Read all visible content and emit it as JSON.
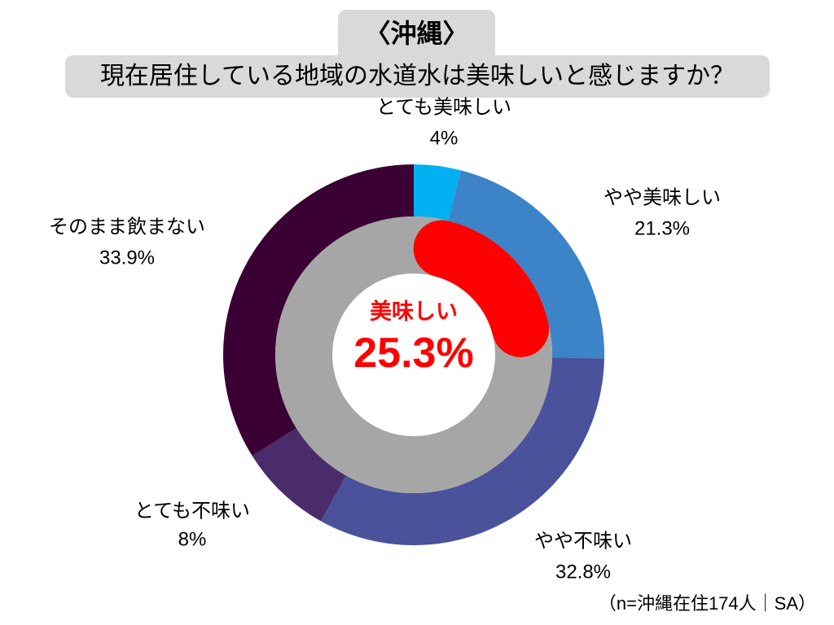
{
  "chart_data": {
    "type": "pie",
    "donut": true,
    "title": "〈沖縄〉",
    "subtitle": "現在居住している地域の水道水は美味しいと感じますか？",
    "categories": [
      "とても美味しい",
      "やや美味しい",
      "やや不味い",
      "とても不味い",
      "そのまま飲まない"
    ],
    "values": [
      4,
      21.3,
      32.8,
      8,
      33.9
    ],
    "unit": "%",
    "colors": [
      "#00B0F0",
      "#3C83C7",
      "#4A529C",
      "#4B2C6A",
      "#3A0034"
    ],
    "highlight": {
      "label": "美味しい",
      "value": 25.3,
      "color": "#FF0000"
    },
    "inner_ring_color": "#A6A6A6",
    "note": "（n=沖縄在住174人｜SA）"
  },
  "colors": {
    "title_box": "#D9D9D9",
    "text": "#000000"
  }
}
